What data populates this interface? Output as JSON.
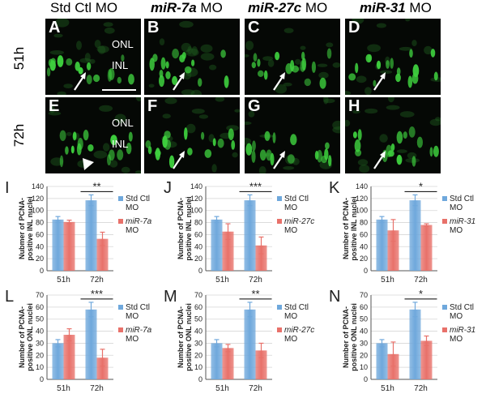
{
  "columns": [
    {
      "id": "std",
      "plain": "Std Ctl MO",
      "gene": "",
      "suffix": ""
    },
    {
      "id": "mir7a",
      "plain": "",
      "gene": "miR-7a",
      "suffix": " MO"
    },
    {
      "id": "mir27c",
      "plain": "",
      "gene": "miR-27c",
      "suffix": " MO"
    },
    {
      "id": "mir31",
      "plain": "",
      "gene": "miR-31",
      "suffix": " MO"
    }
  ],
  "rows": [
    "51h",
    "72h"
  ],
  "micrographs": [
    {
      "letter": "A",
      "layers": [
        "ONL",
        "INL"
      ],
      "marker": "arrow",
      "scalebar": true
    },
    {
      "letter": "B",
      "layers": [],
      "marker": "arrow",
      "scalebar": false
    },
    {
      "letter": "C",
      "layers": [],
      "marker": "arrow",
      "scalebar": false
    },
    {
      "letter": "D",
      "layers": [],
      "marker": "arrow",
      "scalebar": false
    },
    {
      "letter": "E",
      "layers": [
        "ONL",
        "INL"
      ],
      "marker": "arrowhead",
      "scalebar": false
    },
    {
      "letter": "F",
      "layers": [],
      "marker": "arrow",
      "scalebar": false
    },
    {
      "letter": "G",
      "layers": [],
      "marker": "arrow",
      "scalebar": false
    },
    {
      "letter": "H",
      "layers": [],
      "marker": "arrow",
      "scalebar": false
    }
  ],
  "colors": {
    "control": "#6fa8dc",
    "morphant": "#e8716a",
    "signal": "#3ecf3e"
  },
  "chart_data": [
    {
      "panel": "I",
      "type": "bar",
      "categories": [
        "51h",
        "72h"
      ],
      "ylabel": [
        "Nubmer of PCNA-",
        "positive INL nuclei"
      ],
      "ylim": [
        0,
        140
      ],
      "yticks": [
        0,
        20,
        40,
        60,
        80,
        100,
        120,
        140
      ],
      "series": [
        {
          "name": "Std Ctl MO",
          "legend": [
            "Std Ctl",
            "MO"
          ],
          "italic": false,
          "values": [
            85,
            117
          ],
          "errors": [
            5,
            9
          ]
        },
        {
          "name": "miR-7a MO",
          "legend": [
            "miR-7a",
            "MO"
          ],
          "italic": true,
          "values": [
            81,
            53
          ],
          "errors": [
            3,
            11
          ]
        }
      ],
      "significance": "**"
    },
    {
      "panel": "J",
      "type": "bar",
      "categories": [
        "51h",
        "72h"
      ],
      "ylabel": [
        "Number of PCNA-",
        "positive INL nuclei"
      ],
      "ylim": [
        0,
        140
      ],
      "yticks": [
        0,
        20,
        40,
        60,
        80,
        100,
        120,
        140
      ],
      "series": [
        {
          "name": "Std Ctl MO",
          "legend": [
            "Std Ctl",
            "MO"
          ],
          "italic": false,
          "values": [
            85,
            117
          ],
          "errors": [
            5,
            9
          ]
        },
        {
          "name": "miR-27c MO",
          "legend": [
            "miR-27c",
            "MO"
          ],
          "italic": true,
          "values": [
            65,
            42
          ],
          "errors": [
            13,
            14
          ]
        }
      ],
      "significance": "***"
    },
    {
      "panel": "K",
      "type": "bar",
      "categories": [
        "51h",
        "72h"
      ],
      "ylabel": [
        "Number of PCNA-",
        "positive INL nuclei"
      ],
      "ylim": [
        0,
        140
      ],
      "yticks": [
        0,
        20,
        40,
        60,
        80,
        100,
        120,
        140
      ],
      "series": [
        {
          "name": "Std Ctl MO",
          "legend": [
            "Std Ctl",
            "MO"
          ],
          "italic": false,
          "values": [
            85,
            117
          ],
          "errors": [
            5,
            9
          ]
        },
        {
          "name": "miR-31 MO",
          "legend": [
            "miR-31",
            "MO"
          ],
          "italic": true,
          "values": [
            67,
            76
          ],
          "errors": [
            18,
            2
          ]
        }
      ],
      "significance": "*"
    },
    {
      "panel": "L",
      "type": "bar",
      "categories": [
        "51h",
        "72h"
      ],
      "ylabel": [
        "Number of PCNA-",
        "positive ONL nuclei"
      ],
      "ylim": [
        0,
        70
      ],
      "yticks": [
        0,
        10,
        20,
        30,
        40,
        50,
        60,
        70
      ],
      "series": [
        {
          "name": "Std Ctl MO",
          "legend": [
            "Std Ctl",
            "MO"
          ],
          "italic": false,
          "values": [
            30,
            58
          ],
          "errors": [
            3,
            6
          ]
        },
        {
          "name": "miR-7a MO",
          "legend": [
            "miR-7a",
            "MO"
          ],
          "italic": true,
          "values": [
            37,
            18
          ],
          "errors": [
            5,
            7
          ]
        }
      ],
      "significance": "***"
    },
    {
      "panel": "M",
      "type": "bar",
      "categories": [
        "51h",
        "72h"
      ],
      "ylabel": [
        "Number of PCNA-",
        "positive ONL nuclei"
      ],
      "ylim": [
        0,
        70
      ],
      "yticks": [
        0,
        10,
        20,
        30,
        40,
        50,
        60,
        70
      ],
      "series": [
        {
          "name": "Std Ctl MO",
          "legend": [
            "Std Ctl",
            "MO"
          ],
          "italic": false,
          "values": [
            30,
            58
          ],
          "errors": [
            3,
            6
          ]
        },
        {
          "name": "miR-27c MO",
          "legend": [
            "miR-27c",
            "MO"
          ],
          "italic": true,
          "values": [
            26,
            24
          ],
          "errors": [
            3,
            6
          ]
        }
      ],
      "significance": "**"
    },
    {
      "panel": "N",
      "type": "bar",
      "categories": [
        "51h",
        "72h"
      ],
      "ylabel": [
        "Number of PCNA-",
        "positive ONL nuclei"
      ],
      "ylim": [
        0,
        70
      ],
      "yticks": [
        0,
        10,
        20,
        30,
        40,
        50,
        60,
        70
      ],
      "series": [
        {
          "name": "Std Ctl MO",
          "legend": [
            "Std Ctl",
            "MO"
          ],
          "italic": false,
          "values": [
            30,
            58
          ],
          "errors": [
            3,
            6
          ]
        },
        {
          "name": "miR-31 MO",
          "legend": [
            "miR-31",
            "MO"
          ],
          "italic": true,
          "values": [
            21,
            32
          ],
          "errors": [
            10,
            4
          ]
        }
      ],
      "significance": "*"
    }
  ]
}
